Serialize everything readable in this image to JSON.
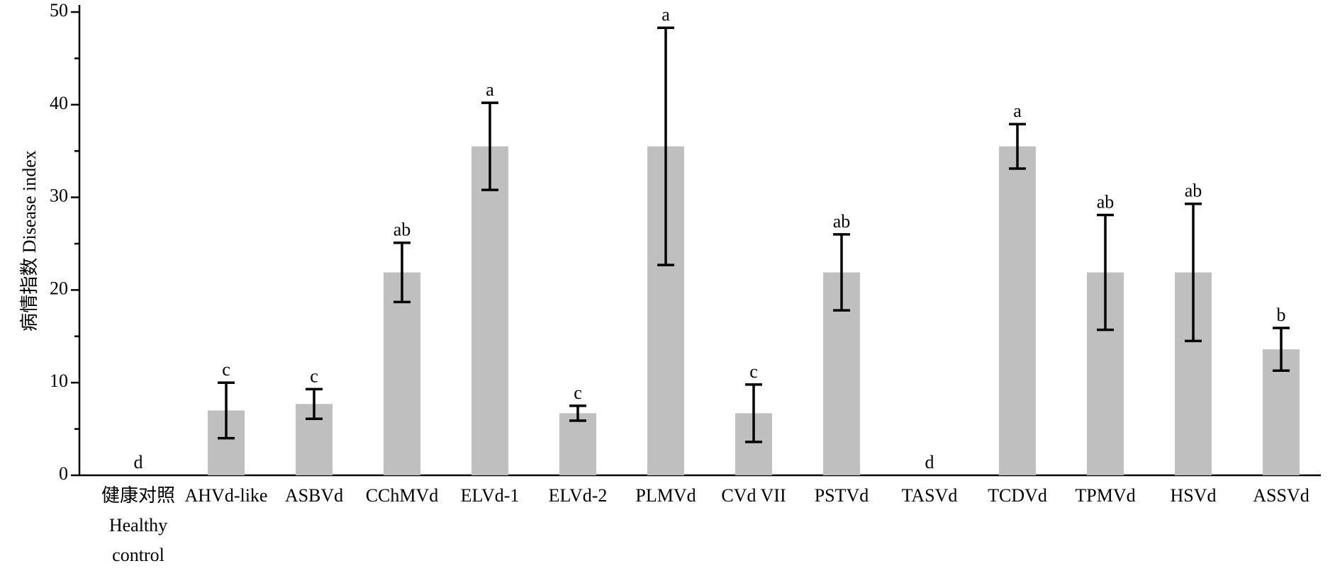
{
  "chart_data": {
    "type": "bar",
    "y_label": "病情指数 Disease index",
    "categories": [
      "健康对照\nHealthy\ncontrol",
      "AHVd-like",
      "ASBVd",
      "CChMVd",
      "ELVd-1",
      "ELVd-2",
      "PLMVd",
      "CVd VII",
      "PSTVd",
      "TASVd",
      "TCDVd",
      "TPMVd",
      "HSVd",
      "ASSVd"
    ],
    "values": [
      0,
      7,
      7.7,
      21.9,
      35.5,
      6.7,
      35.5,
      6.7,
      21.9,
      0,
      35.5,
      21.9,
      21.9,
      13.6
    ],
    "errors": [
      null,
      3.0,
      1.6,
      3.2,
      4.7,
      0.8,
      12.8,
      3.1,
      4.1,
      null,
      2.4,
      6.2,
      7.4,
      2.3
    ],
    "annotations": [
      "d",
      "c",
      "c",
      "ab",
      "a",
      "c",
      "a",
      "c",
      "ab",
      "d",
      "a",
      "ab",
      "ab",
      "b"
    ],
    "color": "#bfbfbf",
    "ylim": [
      0,
      50
    ],
    "yticks": [
      0,
      10,
      20,
      30,
      40,
      50
    ],
    "minor_yticks": [
      5,
      15,
      25,
      35,
      45
    ]
  }
}
